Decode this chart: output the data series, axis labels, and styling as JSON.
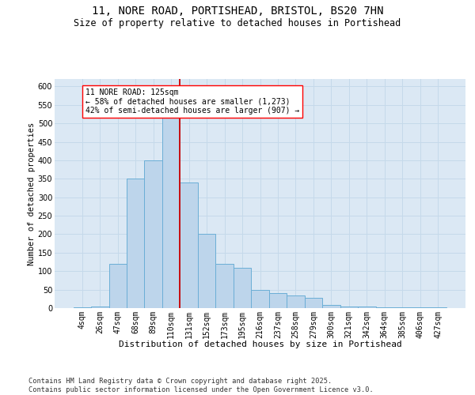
{
  "title1": "11, NORE ROAD, PORTISHEAD, BRISTOL, BS20 7HN",
  "title2": "Size of property relative to detached houses in Portishead",
  "xlabel": "Distribution of detached houses by size in Portishead",
  "ylabel": "Number of detached properties",
  "categories": [
    "4sqm",
    "26sqm",
    "47sqm",
    "68sqm",
    "89sqm",
    "110sqm",
    "131sqm",
    "152sqm",
    "173sqm",
    "195sqm",
    "216sqm",
    "237sqm",
    "258sqm",
    "279sqm",
    "300sqm",
    "321sqm",
    "342sqm",
    "364sqm",
    "385sqm",
    "406sqm",
    "427sqm"
  ],
  "values": [
    3,
    5,
    120,
    350,
    400,
    530,
    340,
    200,
    120,
    110,
    50,
    40,
    35,
    28,
    8,
    5,
    5,
    3,
    3,
    3,
    3
  ],
  "bar_color": "#bdd5eb",
  "bar_edge_color": "#6baed6",
  "bar_linewidth": 0.7,
  "vline_color": "#cc0000",
  "vline_linewidth": 1.3,
  "vline_position": 5.5,
  "annotation_text": "11 NORE ROAD: 125sqm\n← 58% of detached houses are smaller (1,273)\n42% of semi-detached houses are larger (907) →",
  "grid_color": "#c5d9ea",
  "background_color": "#dbe8f4",
  "ylim": [
    0,
    620
  ],
  "yticks": [
    0,
    50,
    100,
    150,
    200,
    250,
    300,
    350,
    400,
    450,
    500,
    550,
    600
  ],
  "footer": "Contains HM Land Registry data © Crown copyright and database right 2025.\nContains public sector information licensed under the Open Government Licence v3.0."
}
